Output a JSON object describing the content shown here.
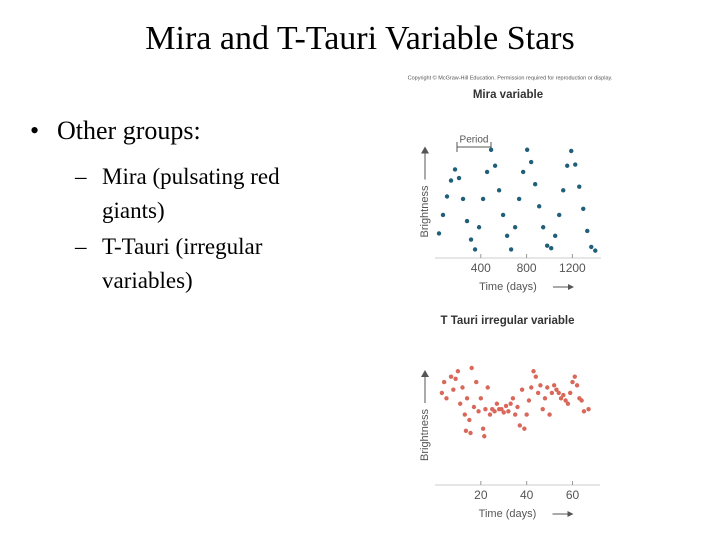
{
  "title": "Mira and T-Tauri Variable Stars",
  "bullets": [
    {
      "marker": "•",
      "text": "Other groups:",
      "sub": [
        {
          "marker": "–",
          "text": "Mira (pulsating red giants)"
        },
        {
          "marker": "–",
          "text": "T-Tauri (irregular variables)"
        }
      ]
    }
  ],
  "copyright": "Copyright © McGraw-Hill Education. Permission required for reproduction or display.",
  "chart_data": [
    {
      "type": "scatter",
      "title": "Mira variable",
      "annotation": "Period",
      "xlabel": "Time (days)",
      "ylabel": "Brightness",
      "color": "#1f5f78",
      "x": [
        35,
        70,
        105,
        140,
        175,
        210,
        245,
        280,
        315,
        350,
        385,
        420,
        455,
        490,
        525,
        560,
        595,
        630,
        665,
        700,
        735,
        770,
        805,
        840,
        875,
        910,
        945,
        980,
        1015,
        1050,
        1085,
        1120,
        1155,
        1190,
        1225,
        1260,
        1295,
        1330,
        1365,
        1400
      ],
      "values": [
        2.0,
        3.5,
        5.0,
        6.3,
        7.2,
        6.5,
        4.8,
        3.0,
        1.5,
        0.7,
        2.5,
        4.8,
        7.0,
        8.8,
        7.5,
        5.5,
        3.5,
        1.8,
        0.7,
        2.5,
        4.8,
        7.0,
        8.8,
        7.8,
        6.0,
        4.2,
        2.5,
        1.0,
        0.8,
        1.8,
        3.5,
        5.5,
        7.5,
        8.7,
        7.6,
        5.8,
        4.0,
        2.2,
        0.9,
        0.6
      ],
      "xlim": [
        0,
        1450
      ],
      "ylim": [
        0,
        10
      ],
      "xticks": [
        400,
        800,
        1200
      ]
    },
    {
      "type": "scatter",
      "title": "T Tauri irregular variable",
      "xlabel": "Time (days)",
      "ylabel": "Brightness",
      "color": "#d9685a",
      "x": [
        3,
        4,
        5,
        7,
        8,
        9,
        10,
        11,
        12,
        13,
        13.5,
        14,
        15,
        15.5,
        16,
        17,
        18,
        19,
        20,
        21,
        21.5,
        22,
        23,
        24,
        25,
        26,
        27,
        28,
        29,
        30,
        31,
        32,
        33,
        34,
        35,
        36,
        37,
        38,
        39,
        40,
        41,
        42,
        43,
        44,
        45,
        46,
        47,
        48,
        49,
        50,
        51,
        52,
        53,
        54,
        55,
        56,
        57,
        58,
        59,
        60,
        61,
        62,
        63,
        64,
        65,
        67
      ],
      "values": [
        8.5,
        9.5,
        8.0,
        10.0,
        8.8,
        9.8,
        10.5,
        7.5,
        9.0,
        6.5,
        5.0,
        8.0,
        6.0,
        4.8,
        10.8,
        7.2,
        9.5,
        6.8,
        8.0,
        5.2,
        4.5,
        7.0,
        9.0,
        6.5,
        7.0,
        6.8,
        7.5,
        7.0,
        7.0,
        6.7,
        7.3,
        6.8,
        7.5,
        8.0,
        6.5,
        7.2,
        5.5,
        8.8,
        5.2,
        6.5,
        7.8,
        9.0,
        10.5,
        10.0,
        8.5,
        9.2,
        7.0,
        8.0,
        9.0,
        6.5,
        8.5,
        9.2,
        8.8,
        8.5,
        8.0,
        8.3,
        7.8,
        7.5,
        8.5,
        9.5,
        10.0,
        9.2,
        8.0,
        7.8,
        6.8,
        7.0
      ],
      "xlim": [
        0,
        72
      ],
      "ylim": [
        0,
        12
      ],
      "xticks": [
        20,
        40,
        60
      ]
    }
  ]
}
